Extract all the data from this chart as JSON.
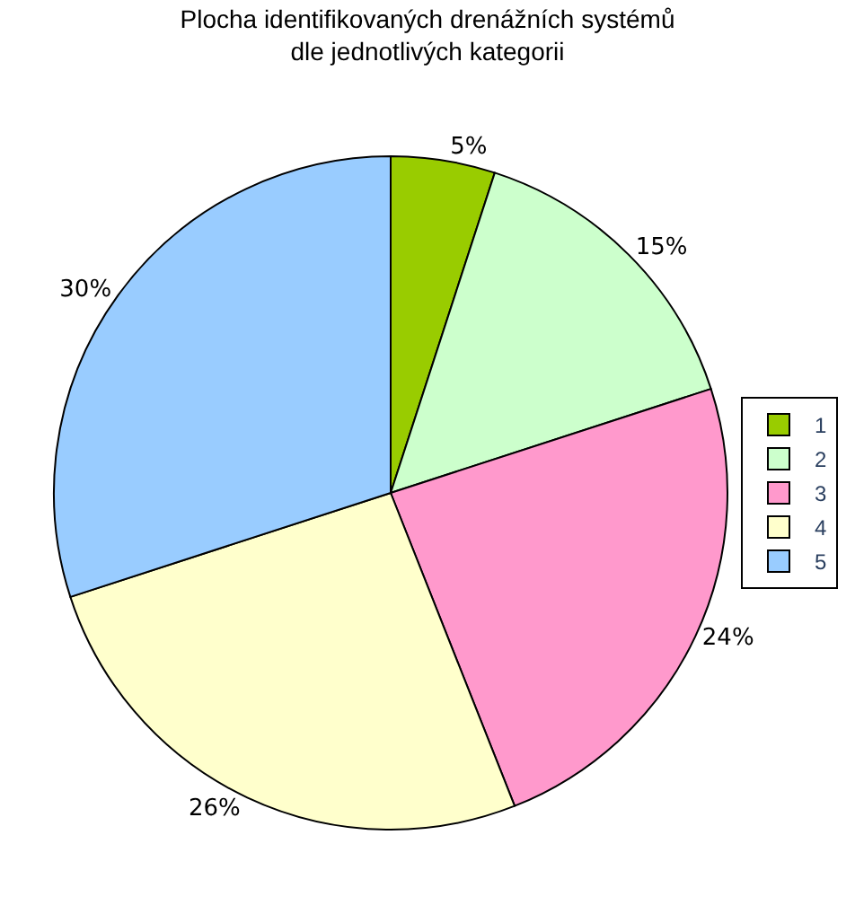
{
  "chart_data": {
    "type": "pie",
    "title": "Plocha identifikovaných drenážních systémů\ndle jednotlivých kategorii",
    "categories": [
      "1",
      "2",
      "3",
      "4",
      "5"
    ],
    "values": [
      5,
      15,
      24,
      26,
      30
    ],
    "colors": [
      "#99cc00",
      "#ccffcc",
      "#ff99cc",
      "#ffffcc",
      "#99ccff"
    ],
    "value_labels": [
      "5%",
      "15%",
      "24%",
      "26%",
      "30%"
    ],
    "legend": "right"
  }
}
